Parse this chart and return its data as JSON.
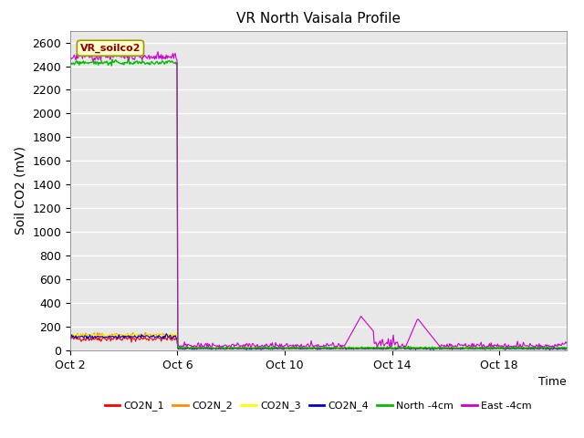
{
  "title": "VR North Vaisala Profile",
  "ylabel": "Soil CO2 (mV)",
  "xlabel": "Time",
  "annotation_text": "VR_soilco2",
  "annotation_color": "#8B0000",
  "annotation_bg": "#FFFFCC",
  "annotation_border": "#999900",
  "ylim": [
    0,
    2700
  ],
  "yticks": [
    0,
    200,
    400,
    600,
    800,
    1000,
    1200,
    1400,
    1600,
    1800,
    2000,
    2200,
    2400,
    2600
  ],
  "xtick_labels": [
    "Oct 2",
    "Oct 6",
    "Oct 10",
    "Oct 14",
    "Oct 18"
  ],
  "plot_bg": "#E8E8E8",
  "fig_bg": "#FFFFFF",
  "series": [
    {
      "label": "CO2N_1",
      "color": "#FF0000"
    },
    {
      "label": "CO2N_2",
      "color": "#FF8C00"
    },
    {
      "label": "CO2N_3",
      "color": "#FFFF00"
    },
    {
      "label": "CO2N_4",
      "color": "#0000CD"
    },
    {
      "label": "North -4cm",
      "color": "#00BB00"
    },
    {
      "label": "East -4cm",
      "color": "#CC00CC"
    }
  ],
  "num_points": 600,
  "oct2_day": 0,
  "oct6_day": 4,
  "oct10_day": 8,
  "oct14_day": 12,
  "oct18_day": 16,
  "total_days": 18.5
}
